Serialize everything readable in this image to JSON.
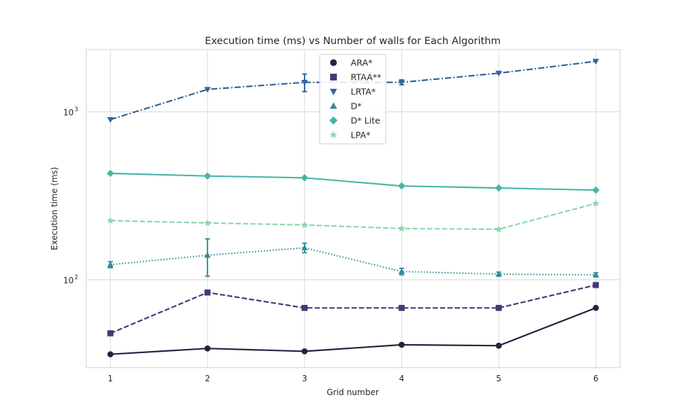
{
  "chart_data": {
    "type": "line",
    "title": "Execution time (ms) vs Number of walls for Each Algorithm",
    "xlabel": "Grid number",
    "ylabel": "Execution time (ms)",
    "x": [
      1,
      2,
      3,
      4,
      5,
      6
    ],
    "xlim": [
      0.75,
      6.25
    ],
    "ylim": [
      30,
      2350
    ],
    "yscale": "log",
    "y_ticks": [
      {
        "value": 100,
        "base": "10",
        "exp": "2"
      },
      {
        "value": 1000,
        "base": "10",
        "exp": "3"
      }
    ],
    "grid": true,
    "legend_position": "top-center",
    "series": [
      {
        "name": "ARA*",
        "values": [
          36,
          39,
          37.5,
          41,
          40.5,
          68
        ],
        "color": "#2d1e3e",
        "dash": "solid",
        "marker": "circle",
        "errors": [
          0,
          0,
          0,
          0,
          0,
          0
        ]
      },
      {
        "name": "RTAA**",
        "values": [
          48,
          84,
          68,
          68,
          68,
          93
        ],
        "color": "#403a75",
        "dash": "dashed",
        "marker": "square",
        "errors": [
          0,
          0,
          0,
          0,
          0,
          0
        ]
      },
      {
        "name": "LRTA*",
        "values": [
          900,
          1360,
          1500,
          1500,
          1700,
          2000
        ],
        "color": "#34629c",
        "dash": "dashdot",
        "marker": "triangle-down",
        "errors": [
          0,
          0,
          180,
          50,
          0,
          0
        ]
      },
      {
        "name": "D*",
        "values": [
          123,
          140,
          155,
          112,
          108,
          107
        ],
        "color": "#348c99",
        "dash": "dotted",
        "marker": "triangle-up",
        "errors": [
          5,
          35,
          10,
          5,
          3,
          3
        ]
      },
      {
        "name": "D* Lite",
        "values": [
          430,
          415,
          405,
          362,
          352,
          342
        ],
        "color": "#48b6a8",
        "dash": "solid",
        "marker": "diamond",
        "errors": [
          0,
          0,
          0,
          0,
          0,
          0
        ]
      },
      {
        "name": "LPA*",
        "values": [
          225,
          218,
          212,
          202,
          200,
          285
        ],
        "color": "#8ad8a8",
        "dash": "dashed",
        "marker": "star",
        "errors": [
          0,
          0,
          0,
          0,
          0,
          0
        ]
      }
    ]
  }
}
